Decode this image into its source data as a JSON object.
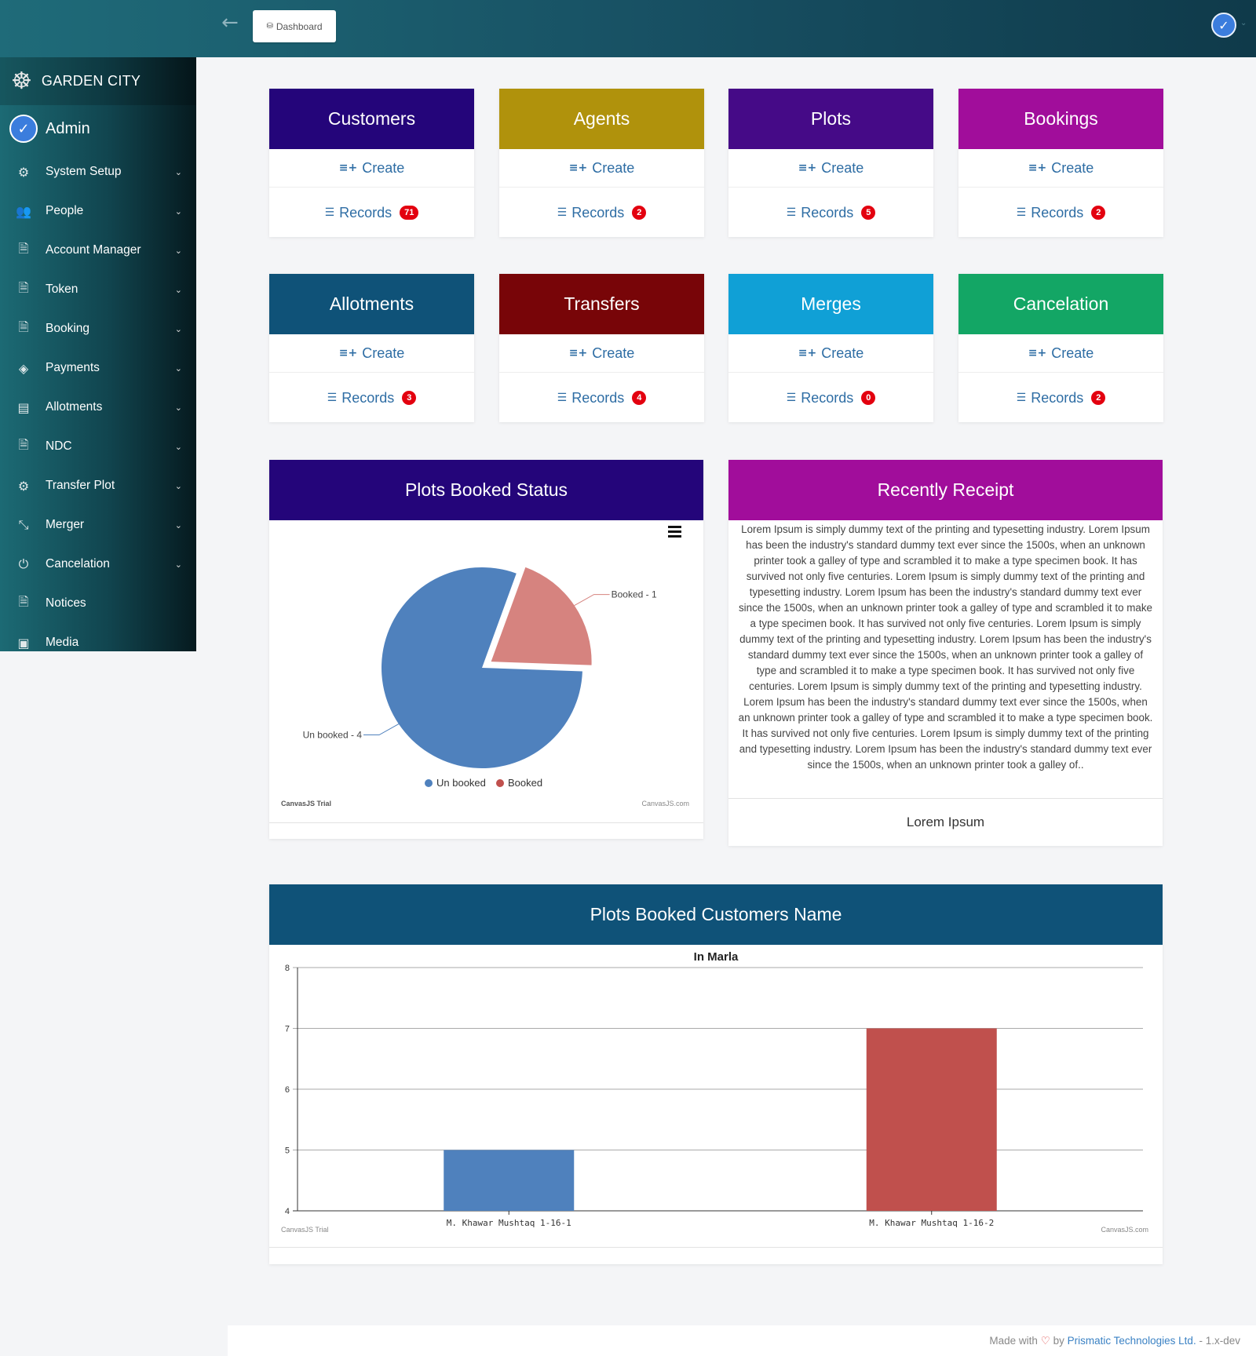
{
  "header": {
    "back_icon": "arrow-left-icon",
    "breadcrumb_label": "Dashboard",
    "user_icon": "check-circle-icon"
  },
  "sidebar": {
    "brand": "GARDEN CITY",
    "user": "Admin",
    "items": [
      {
        "label": "System Setup",
        "icon": "cogs-icon",
        "expandable": true
      },
      {
        "label": "People",
        "icon": "users-icon",
        "expandable": true
      },
      {
        "label": "Account Manager",
        "icon": "document-icon",
        "expandable": true
      },
      {
        "label": "Token",
        "icon": "document-icon",
        "expandable": true
      },
      {
        "label": "Booking",
        "icon": "document-icon",
        "expandable": true
      },
      {
        "label": "Payments",
        "icon": "tag-icon",
        "expandable": true
      },
      {
        "label": "Allotments",
        "icon": "list-icon",
        "expandable": true
      },
      {
        "label": "NDC",
        "icon": "document-icon",
        "expandable": true
      },
      {
        "label": "Transfer Plot",
        "icon": "cogs-icon",
        "expandable": true
      },
      {
        "label": "Merger",
        "icon": "compress-icon",
        "expandable": true
      },
      {
        "label": "Cancelation",
        "icon": "power-icon",
        "expandable": true
      },
      {
        "label": "Notices",
        "icon": "document-icon",
        "expandable": false
      },
      {
        "label": "Media",
        "icon": "image-icon",
        "expandable": false
      }
    ]
  },
  "cards": [
    {
      "title": "Customers",
      "color": "#24057a",
      "create": "Create",
      "records": "Records",
      "count": "71"
    },
    {
      "title": "Agents",
      "color": "#b0920c",
      "create": "Create",
      "records": "Records",
      "count": "2"
    },
    {
      "title": "Plots",
      "color": "#450a87",
      "create": "Create",
      "records": "Records",
      "count": "5"
    },
    {
      "title": "Bookings",
      "color": "#a10d9b",
      "create": "Create",
      "records": "Records",
      "count": "2"
    },
    {
      "title": "Allotments",
      "color": "#0f5278",
      "create": "Create",
      "records": "Records",
      "count": "3"
    },
    {
      "title": "Transfers",
      "color": "#780508",
      "create": "Create",
      "records": "Records",
      "count": "4"
    },
    {
      "title": "Merges",
      "color": "#10a0d6",
      "create": "Create",
      "records": "Records",
      "count": "0"
    },
    {
      "title": "Cancelation",
      "color": "#13a665",
      "create": "Create",
      "records": "Records",
      "count": "2"
    }
  ],
  "pie_panel": {
    "title": "Plots Booked Status",
    "color": "#24057a",
    "menu_icon": "hamburger-icon",
    "watermark_left": "CanvasJS Trial",
    "watermark_right": "CanvasJS.com"
  },
  "receipt_panel": {
    "title": "Recently Receipt",
    "color": "#a10d9b",
    "body": "Lorem Ipsum is simply dummy text of the printing and typesetting industry. Lorem Ipsum has been the industry's standard dummy text ever since the 1500s, when an unknown printer took a galley of type and scrambled it to make a type specimen book. It has survived not only five centuries. Lorem Ipsum is simply dummy text of the printing and typesetting industry. Lorem Ipsum has been the industry's standard dummy text ever since the 1500s, when an unknown printer took a galley of type and scrambled it to make a type specimen book. It has survived not only five centuries. Lorem Ipsum is simply dummy text of the printing and typesetting industry. Lorem Ipsum has been the industry's standard dummy text ever since the 1500s, when an unknown printer took a galley of type and scrambled it to make a type specimen book. It has survived not only five centuries. Lorem Ipsum is simply dummy text of the printing and typesetting industry. Lorem Ipsum has been the industry's standard dummy text ever since the 1500s, when an unknown printer took a galley of type and scrambled it to make a type specimen book. It has survived not only five centuries. Lorem Ipsum is simply dummy text of the printing and typesetting industry. Lorem Ipsum has been the industry's standard dummy text ever since the 1500s, when an unknown printer took a galley of..",
    "footer": "Lorem Ipsum"
  },
  "bar_panel": {
    "title": "Plots Booked Customers Name",
    "color": "#0f5278",
    "watermark_left": "CanvasJS Trial",
    "watermark_right": "CanvasJS.com"
  },
  "chart_data": [
    {
      "type": "pie",
      "labels": [
        "Un booked",
        "Booked"
      ],
      "values": [
        4,
        1
      ],
      "colors": [
        "#4f81bd",
        "#d6837f"
      ],
      "legend_colors": [
        "#4f81bd",
        "#c0504d"
      ],
      "index_labels": [
        "Un booked - 4",
        "Booked - 1"
      ],
      "exploded": "Booked",
      "legend": "bottom-center"
    },
    {
      "type": "bar",
      "title": "In Marla",
      "categories": [
        "M. Khawar Mushtaq 1-16-1",
        "M. Khawar Mushtaq 1-16-2"
      ],
      "values": [
        5,
        7
      ],
      "colors": [
        "#4f81bd",
        "#c0504d"
      ],
      "ylim": [
        4,
        8
      ],
      "yticks": [
        4,
        5,
        6,
        7,
        8
      ],
      "grid": true
    }
  ],
  "footer": {
    "prefix": "Made with",
    "by": "by",
    "company": "Prismatic Technologies Ltd.",
    "version": "- 1.x-dev"
  }
}
